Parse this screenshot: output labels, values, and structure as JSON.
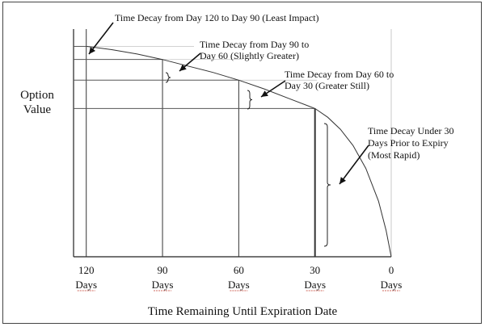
{
  "chart_data": {
    "type": "line",
    "title": "",
    "xlabel": "Time Remaining Until Expiration Date",
    "ylabel_lines": [
      "Option",
      "Value"
    ],
    "x_ticks": [
      {
        "value": 120,
        "number": "120",
        "unit": "Days"
      },
      {
        "value": 90,
        "number": "90",
        "unit": "Days"
      },
      {
        "value": 60,
        "number": "60",
        "unit": "Days"
      },
      {
        "value": 30,
        "number": "30",
        "unit": "Days"
      },
      {
        "value": 0,
        "number": "0",
        "unit": "Days"
      }
    ],
    "xlim": [
      125,
      0
    ],
    "ylim": [
      0,
      1
    ],
    "grid": false,
    "series": [
      {
        "x": [
          120,
          110,
          100,
          90,
          80,
          70,
          60,
          50,
          40,
          30,
          25,
          20,
          15,
          10,
          5,
          2,
          0
        ],
        "values": [
          0.965,
          0.95,
          0.93,
          0.905,
          0.875,
          0.845,
          0.81,
          0.77,
          0.725,
          0.68,
          0.64,
          0.585,
          0.51,
          0.405,
          0.255,
          0.12,
          0.0
        ]
      }
    ],
    "levels": [
      {
        "day": 120,
        "value": 0.965
      },
      {
        "day": 90,
        "value": 0.905
      },
      {
        "day": 60,
        "value": 0.81
      },
      {
        "day": 30,
        "value": 0.68
      }
    ],
    "annotations": [
      {
        "lines": [
          "Time Decay from Day 120 to Day 90 (Least Impact)"
        ]
      },
      {
        "lines": [
          "Time Decay from Day 90 to",
          "Day 60 (Slightly Greater)"
        ]
      },
      {
        "lines": [
          "Time Decay from Day 60 to",
          "Day 30 (Greater Still)"
        ]
      },
      {
        "lines": [
          "Time Decay Under 30",
          "Days Prior to Expiry",
          "(Most Rapid)"
        ]
      }
    ]
  }
}
